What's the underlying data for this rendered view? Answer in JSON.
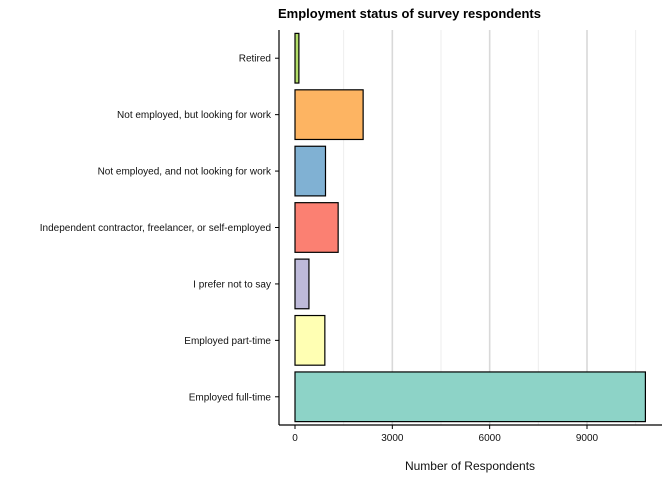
{
  "chart_data": {
    "type": "bar",
    "orientation": "horizontal",
    "title": "Employment status of survey respondents",
    "xlabel": "Number of Respondents",
    "ylabel": "",
    "xlim": [
      0,
      11000
    ],
    "x_ticks": [
      0,
      3000,
      6000,
      9000
    ],
    "grid": "vertical lines",
    "categories": [
      "Retired",
      "Not employed, but looking for work",
      "Not employed, and not looking for work",
      "Independent contractor, freelancer, or self-employed",
      "I prefer not to say",
      "Employed part-time",
      "Employed full-time"
    ],
    "values": [
      120,
      2100,
      940,
      1330,
      430,
      920,
      10800
    ],
    "colors": [
      "#b3de69",
      "#fdb462",
      "#80b1d3",
      "#fb8072",
      "#bebada",
      "#ffffb3",
      "#8dd3c7"
    ]
  }
}
